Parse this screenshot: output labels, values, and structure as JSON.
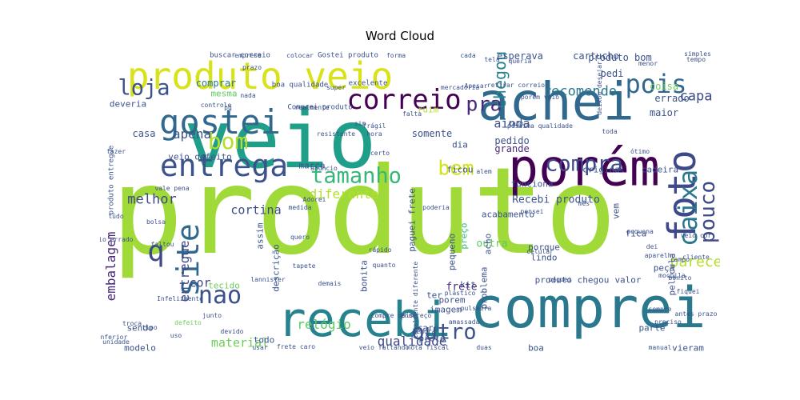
{
  "title": "Word Cloud",
  "colormap": [
    "#440154",
    "#482878",
    "#3e4989",
    "#31688e",
    "#26828e",
    "#1f9e89",
    "#35b779",
    "#6ece58",
    "#b5de2b",
    "#fde725"
  ],
  "words": [
    {
      "text": "produto",
      "color": "#a0da39",
      "rot": 0
    },
    {
      "text": "veio",
      "color": "#1f9e89",
      "rot": 0
    },
    {
      "text": "comprei",
      "color": "#2a788e",
      "rot": 0
    },
    {
      "text": "achei",
      "color": "#31688e",
      "rot": 0
    },
    {
      "text": "porém",
      "color": "#440154",
      "rot": 0
    },
    {
      "text": "recebi",
      "color": "#26828e",
      "rot": 0
    },
    {
      "text": "produto veio",
      "color": "#d8e219",
      "rot": 0
    },
    {
      "text": "gostei",
      "color": "#31688e",
      "rot": 0
    },
    {
      "text": "entrega",
      "color": "#3b528b",
      "rot": 0
    },
    {
      "text": "foto",
      "color": "#3e4989",
      "rot": -90
    },
    {
      "text": "correio",
      "color": "#440154",
      "rot": 0
    },
    {
      "text": "pois",
      "color": "#31688e",
      "rot": 0
    },
    {
      "text": "caixa",
      "color": "#2a788e",
      "rot": -90
    },
    {
      "text": "compra",
      "color": "#3e4989",
      "rot": 0
    },
    {
      "text": "site",
      "color": "#31688e",
      "rot": -90
    },
    {
      "text": "loja",
      "color": "#3b528b",
      "rot": 0
    },
    {
      "text": "nao",
      "color": "#3b528b",
      "rot": 0
    },
    {
      "text": "outro",
      "color": "#3b528b",
      "rot": 0
    },
    {
      "text": "bem",
      "color": "#d2e21b",
      "rot": 0
    },
    {
      "text": "tamanho",
      "color": "#35b779",
      "rot": 0
    },
    {
      "text": "pouco",
      "color": "#3e4989",
      "rot": -90
    },
    {
      "text": "pra",
      "color": "#482878",
      "rot": 0
    },
    {
      "text": "bom",
      "color": "#b5de2b",
      "rot": 0
    },
    {
      "text": "chegou",
      "color": "#26828e",
      "rot": -90
    },
    {
      "text": "recomendo",
      "color": "#2a788e",
      "rot": 0
    },
    {
      "text": "q",
      "color": "#3e4989",
      "rot": 0
    },
    {
      "text": "melhor",
      "color": "#3e4989",
      "rot": 0
    },
    {
      "text": "diferente",
      "color": "#b5de2b",
      "rot": 0
    },
    {
      "text": "relógio",
      "color": "#5ec962",
      "rot": 0
    },
    {
      "text": "qualidade",
      "color": "#3e4989",
      "rot": 0
    },
    {
      "text": "capa",
      "color": "#3e4989",
      "rot": 0
    },
    {
      "text": "apena",
      "color": "#3b528b",
      "rot": 0
    },
    {
      "text": "parece",
      "color": "#b5de2b",
      "rot": 0
    },
    {
      "text": "embalagem",
      "color": "#482878",
      "rot": -90
    },
    {
      "text": "entregue",
      "color": "#3e4989",
      "rot": -90
    },
    {
      "text": "material",
      "color": "#6ece58",
      "rot": 0
    },
    {
      "text": "cortina",
      "color": "#3e4989",
      "rot": 0
    },
    {
      "text": "ainda",
      "color": "#3b528b",
      "rot": 0
    },
    {
      "text": "Recebi produto",
      "color": "#3b528b",
      "rot": 0
    },
    {
      "text": "cor",
      "color": "#3e4989",
      "rot": 0
    },
    {
      "text": "frete",
      "color": "#482878",
      "rot": 0
    },
    {
      "text": "outra",
      "color": "#5ec962",
      "rot": 0
    },
    {
      "text": "comprar",
      "color": "#2a788e",
      "rot": 0
    },
    {
      "text": "mesma",
      "color": "#5ec962",
      "rot": 0
    },
    {
      "text": "deveria",
      "color": "#3b528b",
      "rot": 0
    },
    {
      "text": "produto bom",
      "color": "#3b528b",
      "rot": 0
    },
    {
      "text": "cartucho",
      "color": "#3b528b",
      "rot": 0
    },
    {
      "text": "pedi",
      "color": "#3b528b",
      "rot": 0
    },
    {
      "text": "esperava",
      "color": "#3b528b",
      "rot": 0
    },
    {
      "text": "maior",
      "color": "#3b528b",
      "rot": 0
    },
    {
      "text": "coisa",
      "color": "#6ece58",
      "rot": 0
    },
    {
      "text": "errado",
      "color": "#3b528b",
      "rot": 0
    },
    {
      "text": "pedido",
      "color": "#3b528b",
      "rot": 0
    },
    {
      "text": "grande",
      "color": "#482878",
      "rot": 0
    },
    {
      "text": "somente",
      "color": "#3b528b",
      "rot": 0
    },
    {
      "text": "dia",
      "color": "#3b528b",
      "rot": 0
    },
    {
      "text": "casa",
      "color": "#3b528b",
      "rot": 0
    },
    {
      "text": "veio defeito",
      "color": "#3b528b",
      "rot": 0
    },
    {
      "text": "marca",
      "color": "#3b528b",
      "rot": 0
    },
    {
      "text": "ficou",
      "color": "#3b528b",
      "rot": 0
    },
    {
      "text": "original",
      "color": "#3b528b",
      "rot": 0
    },
    {
      "text": "cadeira",
      "color": "#3b528b",
      "rot": 0
    },
    {
      "text": "funciona",
      "color": "#3b528b",
      "rot": 0
    },
    {
      "text": "acabamento",
      "color": "#3b528b",
      "rot": 0
    },
    {
      "text": "fica",
      "color": "#3b528b",
      "rot": 0
    },
    {
      "text": "porque",
      "color": "#3b528b",
      "rot": 0
    },
    {
      "text": "lindo",
      "color": "#3b528b",
      "rot": 0
    },
    {
      "text": "produto chegou",
      "color": "#3b528b",
      "rot": 0
    },
    {
      "text": "valor",
      "color": "#3b528b",
      "rot": 0
    },
    {
      "text": "peça",
      "color": "#3b528b",
      "rot": 0
    },
    {
      "text": "kit",
      "color": "#3b528b",
      "rot": 0
    },
    {
      "text": "ter",
      "color": "#3b528b",
      "rot": 0
    },
    {
      "text": "imagem",
      "color": "#3b528b",
      "rot": 0
    },
    {
      "text": "caro",
      "color": "#3b528b",
      "rot": 0
    },
    {
      "text": "preto",
      "color": "#3b528b",
      "rot": 0
    },
    {
      "text": "todo",
      "color": "#3b528b",
      "rot": 0
    },
    {
      "text": "boa",
      "color": "#3b528b",
      "rot": 0
    },
    {
      "text": "parte",
      "color": "#3b528b",
      "rot": 0
    },
    {
      "text": "vieram",
      "color": "#3b528b",
      "rot": 0
    },
    {
      "text": "modelo",
      "color": "#3b528b",
      "rot": 0
    },
    {
      "text": "sendo",
      "color": "#3b528b",
      "rot": 0
    },
    {
      "text": "tecido",
      "color": "#6ece58",
      "rot": 0
    },
    {
      "text": "porem",
      "color": "#3b528b",
      "rot": 0
    },
    {
      "text": "bonita",
      "color": "#3b528b",
      "rot": -90
    },
    {
      "text": "descrição",
      "color": "#3b528b",
      "rot": -90
    },
    {
      "text": "assim",
      "color": "#3b528b",
      "rot": -90
    },
    {
      "text": "pequeno",
      "color": "#3b528b",
      "rot": -90
    },
    {
      "text": "preço",
      "color": "#35b779",
      "rot": -90
    },
    {
      "text": "acho",
      "color": "#3b528b",
      "rot": -90
    },
    {
      "text": "problema",
      "color": "#3b528b",
      "rot": -90
    },
    {
      "text": "paguei frete",
      "color": "#3b528b",
      "rot": -90
    },
    {
      "text": "película",
      "color": "#3b528b",
      "rot": -90
    },
    {
      "text": "vem",
      "color": "#3b528b",
      "rot": -90
    },
    {
      "text": "ruim",
      "color": "#b5de2b",
      "rot": 0
    },
    {
      "text": "Gostei produto",
      "color": "#3b528b",
      "rot": 0
    },
    {
      "text": "buscar correio",
      "color": "#3b528b",
      "rot": 0
    },
    {
      "text": "Comprei produto",
      "color": "#3b528b",
      "rot": 0
    },
    {
      "text": "boa qualidade",
      "color": "#3b528b",
      "rot": 0
    },
    {
      "text": "excelente",
      "color": "#3b528b",
      "rot": 0
    },
    {
      "text": "produto entregue",
      "color": "#3b528b",
      "rot": -90
    },
    {
      "text": "frágil",
      "color": "#3b528b",
      "rot": 0
    },
    {
      "text": "hora",
      "color": "#3b528b",
      "rot": 0
    },
    {
      "text": "certo",
      "color": "#3b528b",
      "rot": 0
    },
    {
      "text": "controle",
      "color": "#3b528b",
      "rot": 0
    },
    {
      "text": "nada",
      "color": "#3b528b",
      "rot": 0
    },
    {
      "text": "falta",
      "color": "#3b528b",
      "rot": 0
    },
    {
      "text": "Apesar",
      "color": "#3b528b",
      "rot": 0
    },
    {
      "text": "toda",
      "color": "#3b528b",
      "rot": 0
    },
    {
      "text": "ótimo",
      "color": "#3b528b",
      "rot": 0
    },
    {
      "text": "pequena",
      "color": "#3b528b",
      "rot": 0
    },
    {
      "text": "aparelho",
      "color": "#3b528b",
      "rot": 0
    },
    {
      "text": "bonito",
      "color": "#3b528b",
      "rot": 0
    },
    {
      "text": "fiquei",
      "color": "#3b528b",
      "rot": 0
    },
    {
      "text": "sempre",
      "color": "#3b528b",
      "rot": 0
    },
    {
      "text": "preciso",
      "color": "#3b528b",
      "rot": 0
    },
    {
      "text": "manual",
      "color": "#3b528b",
      "rot": 0
    },
    {
      "text": "duas",
      "color": "#3b528b",
      "rot": 0
    },
    {
      "text": "nota fiscal",
      "color": "#3b528b",
      "rot": 0
    },
    {
      "text": "veio faltando",
      "color": "#3b528b",
      "rot": 0
    },
    {
      "text": "frete caro",
      "color": "#3b528b",
      "rot": 0
    },
    {
      "text": "usar",
      "color": "#3b528b",
      "rot": 0
    },
    {
      "text": "junto",
      "color": "#3b528b",
      "rot": 0
    },
    {
      "text": "Infelizmente",
      "color": "#3b528b",
      "rot": 0
    },
    {
      "text": "defeito",
      "color": "#6ece58",
      "rot": 0
    },
    {
      "text": "uso",
      "color": "#3b528b",
      "rot": 0
    },
    {
      "text": "demais",
      "color": "#3b528b",
      "rot": 0
    },
    {
      "text": "tapete",
      "color": "#3b528b",
      "rot": 0
    },
    {
      "text": "quero",
      "color": "#3b528b",
      "rot": 0
    },
    {
      "text": "rápido",
      "color": "#3b528b",
      "rot": 0
    },
    {
      "text": "quanto",
      "color": "#3b528b",
      "rot": 0
    },
    {
      "text": "bolsa",
      "color": "#3b528b",
      "rot": 0
    },
    {
      "text": "faltou",
      "color": "#3b528b",
      "rot": 0
    },
    {
      "text": "tudo",
      "color": "#3b528b",
      "rot": 0
    },
    {
      "text": "Adorei",
      "color": "#3b528b",
      "rot": 0
    },
    {
      "text": "vale pena",
      "color": "#3b528b",
      "rot": 0
    },
    {
      "text": "anúncio",
      "color": "#3b528b",
      "rot": 0
    },
    {
      "text": "poderia",
      "color": "#3b528b",
      "rot": 0
    },
    {
      "text": "tela",
      "color": "#3b528b",
      "rot": 0
    },
    {
      "text": "cabo",
      "color": "#3b528b",
      "rot": 0
    },
    {
      "text": "celular",
      "color": "#3b528b",
      "rot": 0
    },
    {
      "text": "plástico",
      "color": "#3b528b",
      "rot": 0
    },
    {
      "text": "pulseira",
      "color": "#3b528b",
      "rot": 0
    },
    {
      "text": "amassada",
      "color": "#3b528b",
      "rot": 0
    },
    {
      "text": "colocar",
      "color": "#3b528b",
      "rot": 0
    },
    {
      "text": "forma",
      "color": "#3b528b",
      "rot": 0
    },
    {
      "text": "cada",
      "color": "#3b528b",
      "rot": 0
    },
    {
      "text": "queria",
      "color": "#3b528b",
      "rot": 0
    },
    {
      "text": "simples",
      "color": "#3b528b",
      "rot": 0
    },
    {
      "text": "tempo",
      "color": "#3b528b",
      "rot": 0
    },
    {
      "text": "menor",
      "color": "#3b528b",
      "rot": 0
    },
    {
      "text": "retirar correio",
      "color": "#3b528b",
      "rot": 0
    },
    {
      "text": "porém veio",
      "color": "#3b528b",
      "rot": 0
    },
    {
      "text": "mercadoria",
      "color": "#3b528b",
      "rot": 0
    },
    {
      "text": "péssima qualidade",
      "color": "#3b528b",
      "rot": 0
    },
    {
      "text": "realmente",
      "color": "#3b528b",
      "rot": 0
    },
    {
      "text": "prazo",
      "color": "#3b528b",
      "rot": 0
    },
    {
      "text": "pq",
      "color": "#3b528b",
      "rot": 0
    },
    {
      "text": "super",
      "color": "#3b528b",
      "rot": 0
    },
    {
      "text": "veio errado",
      "color": "#3b528b",
      "rot": 0
    },
    {
      "text": "veio cor",
      "color": "#3b528b",
      "rot": 0
    },
    {
      "text": "lannister",
      "color": "#3b528b",
      "rot": 0
    },
    {
      "text": "totalmente diferente",
      "color": "#3b528b",
      "rot": -90
    },
    {
      "text": "compre dois",
      "color": "#3b528b",
      "rot": 0
    },
    {
      "text": "endereço",
      "color": "#3b528b",
      "rot": 0
    },
    {
      "text": "demora",
      "color": "#3b528b",
      "rot": 0
    },
    {
      "text": "devido",
      "color": "#3b528b",
      "rot": 0
    },
    {
      "text": "tipo",
      "color": "#3b528b",
      "rot": 0
    },
    {
      "text": "troca",
      "color": "#3b528b",
      "rot": 0
    },
    {
      "text": "antes prazo",
      "color": "#3b528b",
      "rot": 0
    },
    {
      "text": "mochila",
      "color": "#3b528b",
      "rot": 0
    },
    {
      "text": "campo",
      "color": "#3b528b",
      "rot": 0
    },
    {
      "text": "paguei",
      "color": "#3b528b",
      "rot": 0
    },
    {
      "text": "dei",
      "color": "#3b528b",
      "rot": 0
    },
    {
      "text": "cliente",
      "color": "#3b528b",
      "rot": 0
    },
    {
      "text": "inferior",
      "color": "#3b528b",
      "rot": 0
    },
    {
      "text": "unidade",
      "color": "#3b528b",
      "rot": 0
    },
    {
      "text": "fazer",
      "color": "#3b528b",
      "rot": 0
    },
    {
      "text": "resistente",
      "color": "#3b528b",
      "rot": 0
    },
    {
      "text": "sim",
      "color": "#3b528b",
      "rot": 0
    },
    {
      "text": "mês",
      "color": "#3b528b",
      "rot": 0
    },
    {
      "text": "deixou desejar",
      "color": "#3b528b",
      "rot": -90
    },
    {
      "text": "empresa",
      "color": "#3b528b",
      "rot": 0
    },
    {
      "text": "medida",
      "color": "#3b528b",
      "rot": 0
    },
    {
      "text": "alem",
      "color": "#3b528b",
      "rot": 0
    },
    {
      "text": "pensei",
      "color": "#3b528b",
      "rot": 0
    },
    {
      "text": "conforme",
      "color": "#3b528b",
      "rot": 0
    },
    {
      "text": "vc",
      "color": "#3b528b",
      "rot": 0
    },
    {
      "text": "cor",
      "color": "#3b528b",
      "rot": 0
    },
    {
      "text": "pano",
      "color": "#3b528b",
      "rot": 0
    },
    {
      "text": "estou",
      "color": "#3b528b",
      "rot": 0
    }
  ]
}
